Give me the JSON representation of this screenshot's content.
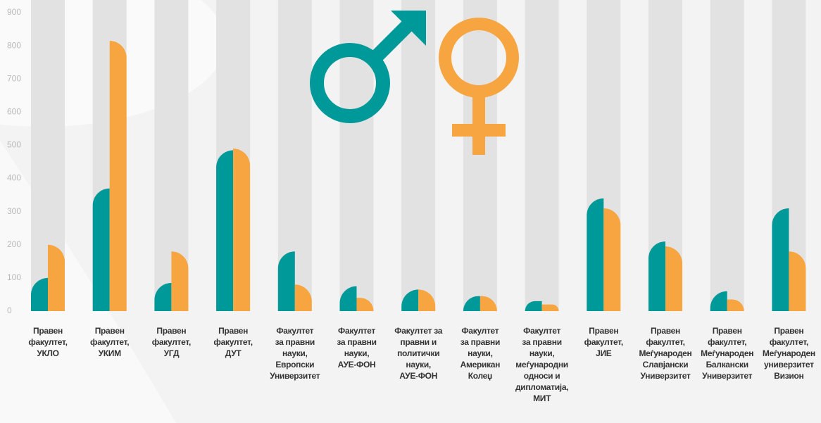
{
  "chart_data": {
    "type": "bar",
    "categories": [
      "Правен\nфакултет,\nУКЛО",
      "Правен\nфакултет,\nУКИМ",
      "Правен\nфакултет,\nУГД",
      "Правен\nфакултет,\nДУТ",
      "Факултет\nза правни\nнауки,\nЕвропски\nУниверзитет",
      "Факултет\nза правни\nнауки,\nАУЕ-ФОН",
      "Факултет за\nправни и\nполитички\nнауки,\nАУЕ-ФОН",
      "Факултет\nза правни\nнауки,\nАмерикан\nКолеџ",
      "Факултет\nза правни\nнауки,\nмеѓународни\nодноси и\nдипломатија,\nМИТ",
      "Правен\nфакултет,\nЈИЕ",
      "Правен\nфакултет,\nМеѓународен\nСлавјански\nУниверзитет",
      "Правен\nфакултет,\nМеѓународен\nБалкански\nУниверзитет",
      "Правен\nфакултет,\nМеѓународен\nуниверзитет\nВизион"
    ],
    "series": [
      {
        "color": "#00999a",
        "values": [
          100,
          370,
          85,
          485,
          180,
          75,
          65,
          45,
          30,
          340,
          210,
          60,
          310
        ]
      },
      {
        "color": "#f7a540",
        "values": [
          200,
          815,
          180,
          490,
          80,
          40,
          65,
          45,
          20,
          310,
          195,
          35,
          180
        ]
      }
    ],
    "ylim": [
      0,
      900
    ],
    "yticks": [
      0,
      100,
      200,
      300,
      400,
      500,
      600,
      700,
      800,
      900
    ],
    "grid": true
  }
}
